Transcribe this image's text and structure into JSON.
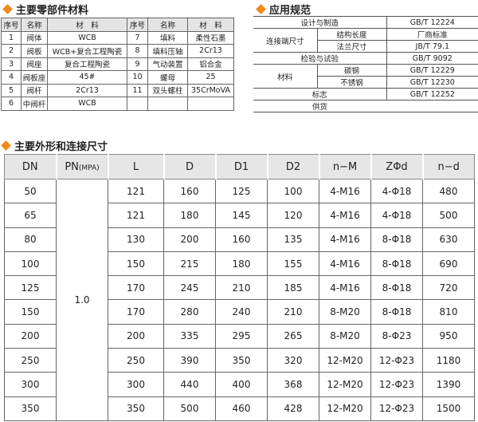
{
  "sections": {
    "parts": "主要零部件材料",
    "spec": "应用规范",
    "dims": "主要外形和连接尺寸"
  },
  "accent_color": "#f08a1c",
  "parts": {
    "headers": [
      "序号",
      "名称",
      "材　料",
      "序号",
      "名称",
      "材　料"
    ],
    "rows": [
      [
        "1",
        "阀体",
        "WCB",
        "7",
        "填料",
        "柔性石墨"
      ],
      [
        "2",
        "阀板",
        "WCB+复合工程陶瓷",
        "8",
        "填料压轴",
        "2Cr13"
      ],
      [
        "3",
        "阀座",
        "复合工程陶瓷",
        "9",
        "气动装置",
        "铝合金"
      ],
      [
        "4",
        "阀板座",
        "45#",
        "10",
        "螺母",
        "25"
      ],
      [
        "5",
        "阀杆",
        "2Cr13",
        "11",
        "双头螺柱",
        "35CrMoVA"
      ],
      [
        "6",
        "中阀杆",
        "WCB",
        "",
        "",
        ""
      ]
    ]
  },
  "spec": {
    "design": "设计与制造",
    "design_v": "GB/T 12224",
    "conn": "连接端尺寸",
    "struct_len": "结构长度",
    "struct_len_v": "厂商标准",
    "flange": "法兰尺寸",
    "flange_v": "JB/T 79.1",
    "test": "检验与试验",
    "test_v": "GB/T 9092",
    "material": "材料",
    "carbon": "碳钢",
    "carbon_v": "GB/T 12229",
    "stainless": "不锈钢",
    "stainless_v": "GB/T 12230",
    "mark": "标志",
    "mark_v": "GB/T 12252",
    "supply": "供货"
  },
  "dims": {
    "headers": [
      "DN",
      "PN",
      "(MPA)",
      "L",
      "D",
      "D1",
      "D2",
      "n−M",
      "ZΦd",
      "n−d"
    ],
    "pn": "1.0",
    "rows": [
      [
        "50",
        "121",
        "160",
        "125",
        "100",
        "4-M16",
        "4-Φ18",
        "480"
      ],
      [
        "65",
        "121",
        "180",
        "145",
        "120",
        "4-M16",
        "4-Φ18",
        "500"
      ],
      [
        "80",
        "130",
        "200",
        "160",
        "135",
        "4-M16",
        "8-Φ18",
        "630"
      ],
      [
        "100",
        "150",
        "215",
        "180",
        "155",
        "4-M16",
        "8-Φ18",
        "690"
      ],
      [
        "125",
        "170",
        "245",
        "210",
        "185",
        "4-M16",
        "8-Φ18",
        "720"
      ],
      [
        "150",
        "170",
        "280",
        "240",
        "210",
        "8-M20",
        "8-Φ18",
        "810"
      ],
      [
        "200",
        "200",
        "335",
        "295",
        "265",
        "8-M20",
        "8-Φ23",
        "950"
      ],
      [
        "250",
        "250",
        "390",
        "350",
        "320",
        "12-M20",
        "12-Φ23",
        "1180"
      ],
      [
        "300",
        "300",
        "440",
        "400",
        "368",
        "12-M20",
        "12-Φ23",
        "1390"
      ],
      [
        "350",
        "350",
        "500",
        "460",
        "428",
        "12-M20",
        "12-Φ23",
        "1500"
      ]
    ]
  }
}
